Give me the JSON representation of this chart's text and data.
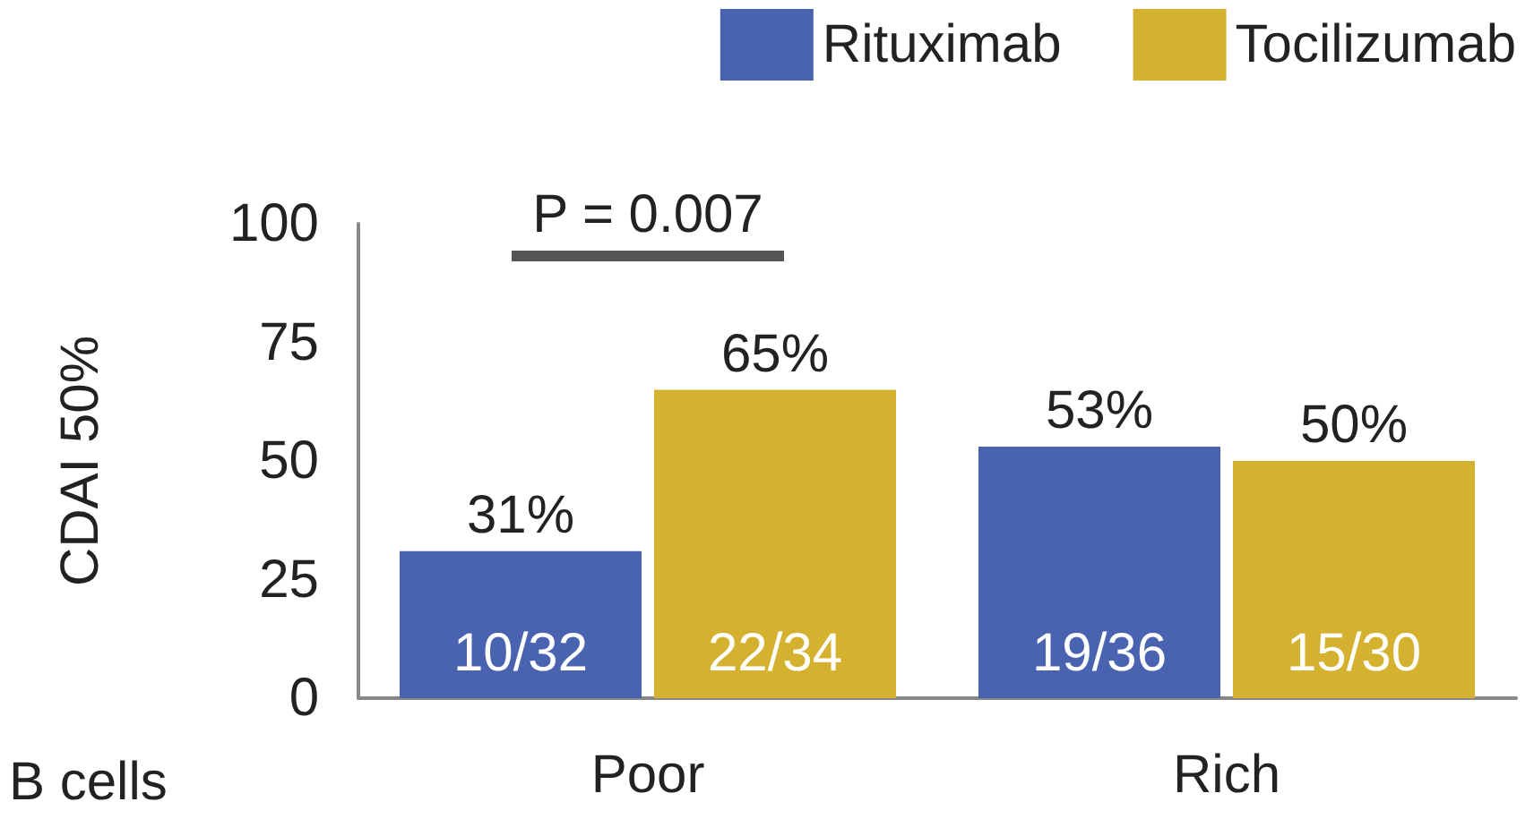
{
  "chart_data": {
    "type": "bar",
    "ylabel": "CDAI 50%",
    "xlabel": "B cells",
    "categories": [
      "Poor",
      "Rich"
    ],
    "series": [
      {
        "name": "Rituximab",
        "color": "#4a63b0",
        "values": [
          31,
          53
        ],
        "value_labels": [
          "31%",
          "53%"
        ]
      },
      {
        "name": "Tocilizumab",
        "color": "#d4b12f",
        "values": [
          65,
          50
        ],
        "value_labels": [
          "65%",
          "50%"
        ]
      }
    ],
    "ylim": [
      0,
      100
    ],
    "yticks": [
      0,
      25,
      50,
      75,
      100
    ],
    "grid": false,
    "legend": "top right",
    "annotations": [
      "10/32",
      "22/34",
      "19/36",
      "15/30",
      "P = 0.007"
    ]
  }
}
